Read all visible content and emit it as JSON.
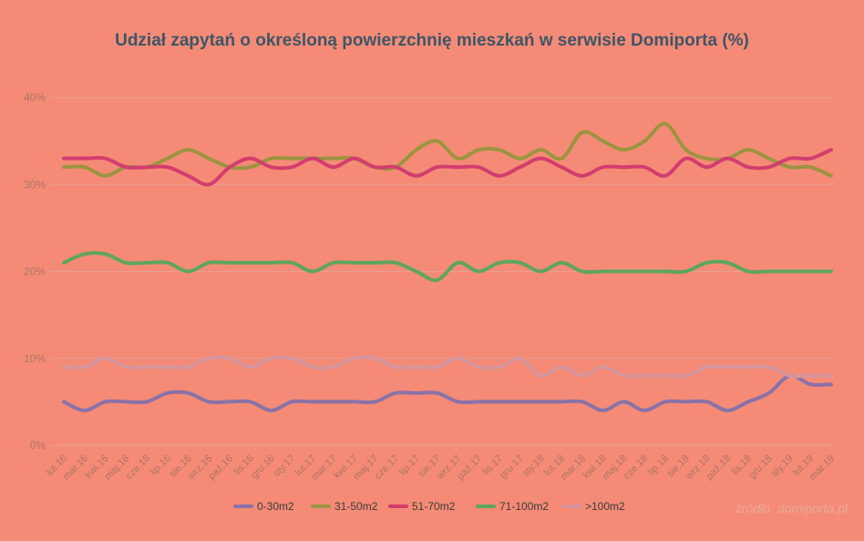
{
  "chart_data": {
    "type": "line",
    "title": "Udział zapytań o określoną powierzchnię mieszkań w serwisie Domiporta (%)",
    "source": "źródło: domiporta.pl",
    "xlabel": "",
    "ylabel": "",
    "ylim": [
      0,
      40
    ],
    "yticks": [
      "0%",
      "10%",
      "20%",
      "30%",
      "40%"
    ],
    "yticks_values": [
      0,
      10,
      20,
      30,
      40
    ],
    "grid": true,
    "legend_position": "bottom",
    "categories": [
      "lut.16",
      "mar.16",
      "kwi.16",
      "maj.16",
      "cze.16",
      "lip.16",
      "sie.16",
      "wrz.16",
      "paź.16",
      "lis.16",
      "gru.16",
      "sty.17",
      "lut.17",
      "mar.17",
      "kwi.17",
      "maj.17",
      "cze.17",
      "lip.17",
      "sie.17",
      "wrz.17",
      "paź.17",
      "lis.17",
      "gru.17",
      "sty.18",
      "lut.18",
      "mar.18",
      "kwi.18",
      "maj.18",
      "cze.18",
      "lip.18",
      "sie.18",
      "wrz.18",
      "paź.18",
      "lis.18",
      "gru.18",
      "sty.19",
      "lut.19",
      "mar.19"
    ],
    "series": [
      {
        "name": "0-30m2",
        "color": "#8a72a8",
        "values": [
          5,
          4,
          5,
          5,
          5,
          6,
          6,
          5,
          5,
          5,
          4,
          5,
          5,
          5,
          5,
          5,
          6,
          6,
          6,
          5,
          5,
          5,
          5,
          5,
          5,
          5,
          4,
          5,
          4,
          5,
          5,
          5,
          4,
          5,
          6,
          8,
          7,
          7
        ]
      },
      {
        "name": "31-50m2",
        "color": "#9c9440",
        "values": [
          32,
          32,
          31,
          32,
          32,
          33,
          34,
          33,
          32,
          32,
          33,
          33,
          33,
          33,
          33,
          32,
          32,
          34,
          35,
          33,
          34,
          34,
          33,
          34,
          33,
          36,
          35,
          34,
          35,
          37,
          34,
          33,
          33,
          34,
          33,
          32,
          32,
          31
        ]
      },
      {
        "name": "51-70m2",
        "color": "#d23d6e",
        "values": [
          33,
          33,
          33,
          32,
          32,
          32,
          31,
          30,
          32,
          33,
          32,
          32,
          33,
          32,
          33,
          32,
          32,
          31,
          32,
          32,
          32,
          31,
          32,
          33,
          32,
          31,
          32,
          32,
          32,
          31,
          33,
          32,
          33,
          32,
          32,
          33,
          33,
          34
        ]
      },
      {
        "name": "71-100m2",
        "color": "#5fa55e",
        "values": [
          21,
          22,
          22,
          21,
          21,
          21,
          20,
          21,
          21,
          21,
          21,
          21,
          20,
          21,
          21,
          21,
          21,
          20,
          19,
          21,
          20,
          21,
          21,
          20,
          21,
          20,
          20,
          20,
          20,
          20,
          20,
          21,
          21,
          20,
          20,
          20,
          20,
          20
        ]
      },
      {
        "name": ">100m2",
        "color": "#d7969d",
        "values": [
          9,
          9,
          10,
          9,
          9,
          9,
          9,
          10,
          10,
          9,
          10,
          10,
          9,
          9,
          10,
          10,
          9,
          9,
          9,
          10,
          9,
          9,
          10,
          8,
          9,
          8,
          9,
          8,
          8,
          8,
          8,
          9,
          9,
          9,
          9,
          8,
          8,
          8
        ]
      }
    ]
  },
  "colors": {
    "background": "#f58b76",
    "grid": "#e6a194",
    "title": "#3d5668",
    "tick": "#ad7368"
  }
}
